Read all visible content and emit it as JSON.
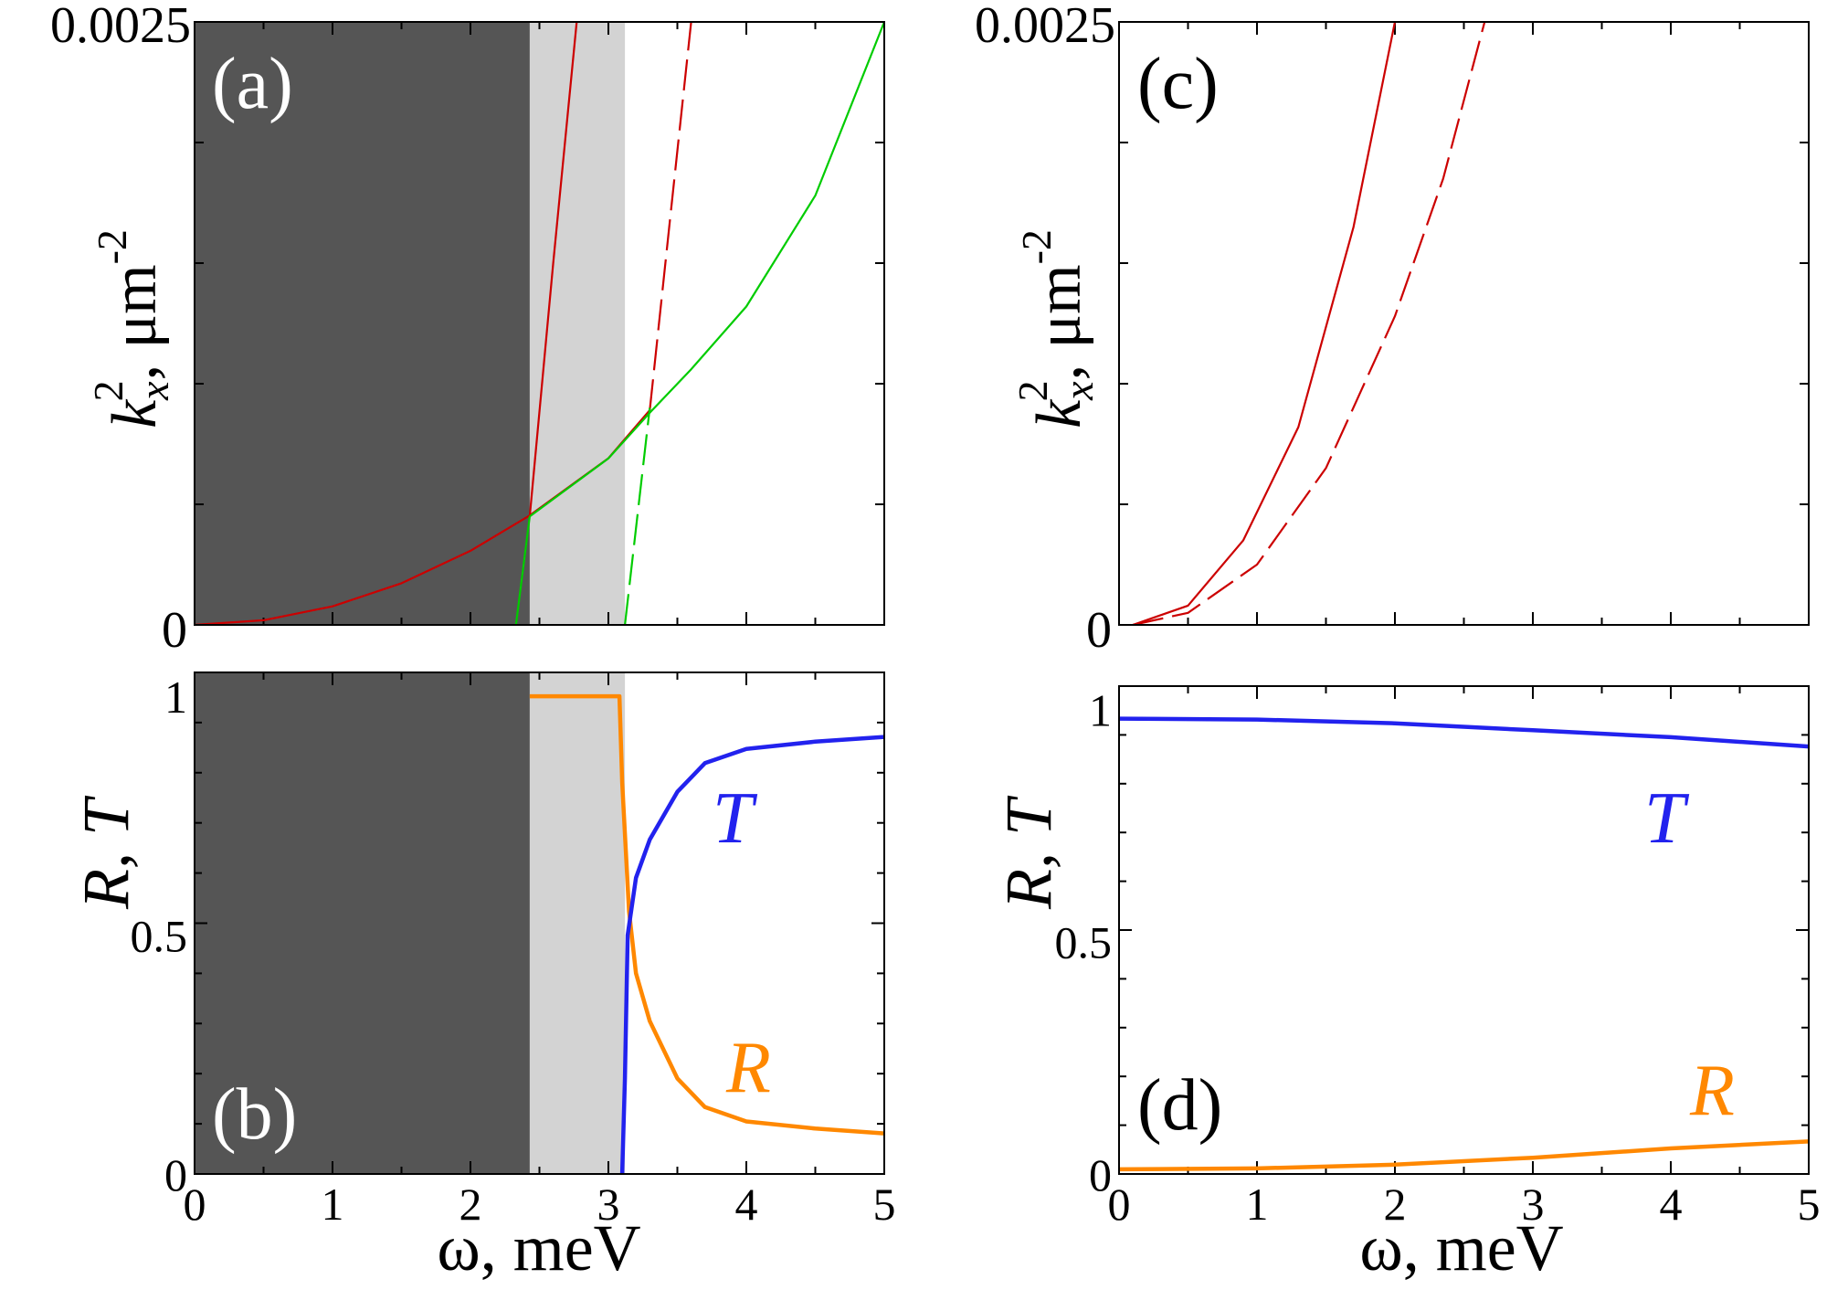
{
  "chart_data": [
    {
      "id": "a",
      "type": "line",
      "panel_label": "(a)",
      "xlim": [
        0,
        5
      ],
      "ylim": [
        0,
        0.0025
      ],
      "y_ticks": [
        "0",
        "0.0025"
      ],
      "ylabel": {
        "symbol": "k",
        "sup": "2",
        "sub": "x",
        "unit": ", μm",
        "unit_exp": "-2"
      },
      "shaded_regions": [
        {
          "name": "dark",
          "from": 0,
          "to": 2.43,
          "color": "#555555"
        },
        {
          "name": "light",
          "from": 2.43,
          "to": 3.12,
          "color": "#d3d3d3"
        }
      ],
      "series": [
        {
          "name": "red-parabola-solid",
          "color": "#cc0000",
          "dash": "solid",
          "x": [
            0,
            0.5,
            1,
            1.5,
            2,
            2.43,
            3.0,
            3.3
          ],
          "y": [
            0,
            1.92e-05,
            7.68e-05,
            0.0001728,
            0.0003072,
            0.0004536,
            0.000691,
            0.00089
          ]
        },
        {
          "name": "red-steep-solid",
          "color": "#cc0000",
          "dash": "solid",
          "x": [
            2.43,
            2.6,
            2.77
          ],
          "y": [
            0.00045,
            0.0015,
            0.0025
          ]
        },
        {
          "name": "red-steep-dashed",
          "color": "#cc0000",
          "dash": "dashed",
          "x": [
            3.3,
            3.45,
            3.6
          ],
          "y": [
            0.00089,
            0.0017,
            0.0025
          ]
        },
        {
          "name": "green-steep-solid",
          "color": "#00cc00",
          "dash": "solid",
          "x": [
            2.33,
            2.43
          ],
          "y": [
            0,
            0.00045
          ]
        },
        {
          "name": "green-steep-dashed",
          "color": "#00cc00",
          "dash": "dashed",
          "x": [
            3.12,
            3.3
          ],
          "y": [
            0,
            0.0009
          ]
        },
        {
          "name": "green-parabola-solid",
          "color": "#00cc00",
          "dash": "solid",
          "x": [
            2.43,
            3.0,
            3.3,
            3.6,
            4.0,
            4.5,
            5.0
          ],
          "y": [
            0.00045,
            0.00069,
            0.00088,
            0.00106,
            0.00132,
            0.00178,
            0.0025
          ]
        }
      ]
    },
    {
      "id": "b",
      "type": "line",
      "panel_label": "(b)",
      "xlim": [
        0,
        5
      ],
      "ylim": [
        0,
        1.05
      ],
      "x_ticks": [
        "0",
        "1",
        "2",
        "3",
        "4",
        "5"
      ],
      "y_ticks": [
        "0",
        "0.5",
        "1"
      ],
      "xlabel": "ω, meV",
      "ylabel": "R, T",
      "shaded_regions": [
        {
          "name": "dark",
          "from": 0,
          "to": 2.43,
          "color": "#555555"
        },
        {
          "name": "light",
          "from": 2.43,
          "to": 3.12,
          "color": "#d3d3d3"
        }
      ],
      "series": [
        {
          "name": "R",
          "label": "R",
          "color": "#ff8800",
          "x": [
            2.43,
            3.08,
            3.1,
            3.15,
            3.2,
            3.3,
            3.5,
            3.7,
            4.0,
            4.5,
            5.0
          ],
          "y": [
            1.0,
            1.0,
            0.82,
            0.55,
            0.42,
            0.32,
            0.2,
            0.14,
            0.11,
            0.095,
            0.085
          ]
        },
        {
          "name": "T",
          "label": "T",
          "color": "#2222ee",
          "x": [
            3.1,
            3.12,
            3.14,
            3.2,
            3.3,
            3.5,
            3.7,
            4.0,
            4.5,
            5.0
          ],
          "y": [
            0.0,
            0.2,
            0.5,
            0.62,
            0.7,
            0.8,
            0.86,
            0.89,
            0.905,
            0.915
          ]
        }
      ]
    },
    {
      "id": "c",
      "type": "line",
      "panel_label": "(c)",
      "xlim": [
        0,
        5
      ],
      "ylim": [
        0,
        0.0025
      ],
      "y_ticks": [
        "0",
        "0.0025"
      ],
      "ylabel": {
        "symbol": "k",
        "sup": "2",
        "sub": "x",
        "unit": ", μm",
        "unit_exp": "-2"
      },
      "series": [
        {
          "name": "red-solid",
          "color": "#cc0000",
          "dash": "solid",
          "x": [
            0.1,
            0.5,
            0.9,
            1.3,
            1.7,
            2.0
          ],
          "y": [
            0,
            8e-05,
            0.00035,
            0.00082,
            0.00165,
            0.0025
          ]
        },
        {
          "name": "red-dashed",
          "color": "#cc0000",
          "dash": "dashed",
          "x": [
            0.1,
            0.5,
            1.0,
            1.5,
            2.0,
            2.35,
            2.65
          ],
          "y": [
            0,
            5e-05,
            0.00025,
            0.00065,
            0.00128,
            0.00185,
            0.0025
          ]
        }
      ]
    },
    {
      "id": "d",
      "type": "line",
      "panel_label": "(d)",
      "xlim": [
        0,
        5
      ],
      "ylim": [
        0,
        1.05
      ],
      "x_ticks": [
        "0",
        "1",
        "2",
        "3",
        "4",
        "5"
      ],
      "y_ticks": [
        "0",
        "0.5",
        "1"
      ],
      "xlabel": "ω, meV",
      "ylabel": "R, T",
      "series": [
        {
          "name": "T",
          "label": "T",
          "color": "#2222ee",
          "x": [
            0,
            1,
            2,
            3,
            4,
            5
          ],
          "y": [
            0.98,
            0.978,
            0.97,
            0.955,
            0.94,
            0.92
          ]
        },
        {
          "name": "R",
          "label": "R",
          "color": "#ff8800",
          "x": [
            0,
            1,
            2,
            3,
            4,
            5
          ],
          "y": [
            0.01,
            0.012,
            0.02,
            0.035,
            0.055,
            0.07
          ]
        }
      ]
    }
  ]
}
